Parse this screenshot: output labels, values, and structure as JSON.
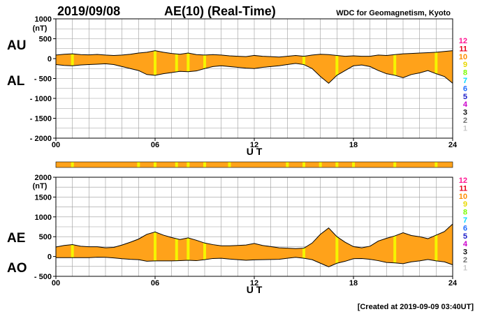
{
  "header": {
    "date": "2019/09/08",
    "title": "AE(10) (Real-Time)",
    "source": "WDC for Geomagnetism, Kyoto"
  },
  "footer": {
    "created": "[Created at 2019-09-09 03:40UT]"
  },
  "colors": {
    "fill": "#ffa21a",
    "highlight": "#f5f500",
    "grid": "#9a9a9a",
    "outline": "#000000"
  },
  "legend": {
    "levels": [
      {
        "label": "12",
        "color": "#ff1493"
      },
      {
        "label": "11",
        "color": "#e8001c"
      },
      {
        "label": "10",
        "color": "#ff8c00"
      },
      {
        "label": "9",
        "color": "#e8d800"
      },
      {
        "label": "8",
        "color": "#7cfc00"
      },
      {
        "label": "7",
        "color": "#00d8ff"
      },
      {
        "label": "6",
        "color": "#1e6cff"
      },
      {
        "label": "5",
        "color": "#1c1cc8"
      },
      {
        "label": "4",
        "color": "#cc00cc"
      },
      {
        "label": "3",
        "color": "#101010"
      },
      {
        "label": "2",
        "color": "#707070"
      },
      {
        "label": "1",
        "color": "#c8c8c8"
      }
    ]
  },
  "station_bar": {
    "highlight_hours": [
      1.0,
      5.0,
      6.0,
      7.3,
      8.0,
      9.0,
      10.5,
      14.0,
      15.0,
      16.0,
      17.0,
      18.0,
      20.5,
      23.0
    ]
  },
  "chart_data": [
    {
      "type": "area",
      "title": "AU / AL",
      "labels": {
        "upper": "AU",
        "lower": "AL"
      },
      "unit": "(nT)",
      "xlabel": "U T",
      "xlim": [
        0,
        24
      ],
      "ylim": [
        -2000,
        1000
      ],
      "yticks": [
        1000,
        500,
        0,
        -500,
        -1000,
        -1500,
        -2000
      ],
      "ytick_labels": [
        "1000",
        "500",
        "0",
        "- 500",
        "- 1000",
        "- 1500",
        "- 2000"
      ],
      "xticks": [
        0,
        6,
        12,
        18,
        24
      ],
      "xtick_labels": [
        "00",
        "06",
        "12",
        "18",
        "24"
      ],
      "highlight_hours": [
        1.0,
        6.0,
        7.3,
        8.0,
        9.0,
        15.0,
        17.0,
        20.5,
        23.0
      ],
      "series": [
        {
          "name": "AU",
          "x": [
            0,
            0.5,
            1,
            1.5,
            2,
            2.5,
            3,
            3.5,
            4,
            4.5,
            5,
            5.5,
            6,
            6.5,
            7,
            7.5,
            8,
            8.5,
            9,
            9.5,
            10,
            10.5,
            11,
            11.5,
            12,
            12.5,
            13,
            13.5,
            14,
            14.5,
            15,
            15.5,
            16,
            16.5,
            17,
            17.5,
            18,
            18.5,
            19,
            19.5,
            20,
            20.5,
            21,
            21.5,
            22,
            22.5,
            23,
            23.5,
            24
          ],
          "values": [
            90,
            110,
            120,
            100,
            95,
            105,
            90,
            80,
            90,
            110,
            140,
            160,
            200,
            160,
            130,
            110,
            140,
            100,
            90,
            100,
            90,
            70,
            60,
            50,
            80,
            60,
            50,
            40,
            60,
            80,
            60,
            90,
            110,
            100,
            80,
            60,
            70,
            60,
            60,
            90,
            80,
            100,
            120,
            130,
            140,
            150,
            160,
            180,
            200
          ]
        },
        {
          "name": "AL",
          "x": [
            0,
            0.5,
            1,
            1.5,
            2,
            2.5,
            3,
            3.5,
            4,
            4.5,
            5,
            5.5,
            6,
            6.5,
            7,
            7.5,
            8,
            8.5,
            9,
            9.5,
            10,
            10.5,
            11,
            11.5,
            12,
            12.5,
            13,
            13.5,
            14,
            14.5,
            15,
            15.5,
            16,
            16.5,
            17,
            17.5,
            18,
            18.5,
            19,
            19.5,
            20,
            20.5,
            21,
            21.5,
            22,
            22.5,
            23,
            23.5,
            24
          ],
          "values": [
            -150,
            -170,
            -180,
            -160,
            -150,
            -140,
            -130,
            -150,
            -200,
            -250,
            -300,
            -400,
            -420,
            -380,
            -350,
            -320,
            -330,
            -310,
            -250,
            -200,
            -180,
            -200,
            -220,
            -240,
            -250,
            -220,
            -200,
            -180,
            -150,
            -120,
            -150,
            -250,
            -450,
            -620,
            -420,
            -300,
            -180,
            -160,
            -200,
            -300,
            -380,
            -420,
            -480,
            -400,
            -360,
            -300,
            -380,
            -450,
            -620
          ]
        }
      ]
    },
    {
      "type": "area",
      "title": "AE / AO",
      "labels": {
        "upper": "AE",
        "lower": "AO"
      },
      "unit": "(nT)",
      "xlabel": "U T",
      "xlim": [
        0,
        24
      ],
      "ylim": [
        -500,
        2000
      ],
      "yticks": [
        2000,
        1500,
        1000,
        500,
        0,
        -500
      ],
      "ytick_labels": [
        "2000",
        "1500",
        "1000",
        "500",
        "0",
        "- 500"
      ],
      "xticks": [
        0,
        6,
        12,
        18,
        24
      ],
      "xtick_labels": [
        "00",
        "06",
        "12",
        "18",
        "24"
      ],
      "highlight_hours": [
        1.0,
        6.0,
        7.3,
        8.0,
        9.0,
        15.0,
        17.0,
        20.5,
        23.0
      ],
      "series": [
        {
          "name": "AE",
          "x": [
            0,
            0.5,
            1,
            1.5,
            2,
            2.5,
            3,
            3.5,
            4,
            4.5,
            5,
            5.5,
            6,
            6.5,
            7,
            7.5,
            8,
            8.5,
            9,
            9.5,
            10,
            10.5,
            11,
            11.5,
            12,
            12.5,
            13,
            13.5,
            14,
            14.5,
            15,
            15.5,
            16,
            16.5,
            17,
            17.5,
            18,
            18.5,
            19,
            19.5,
            20,
            20.5,
            21,
            21.5,
            22,
            22.5,
            23,
            23.5,
            24
          ],
          "values": [
            240,
            280,
            300,
            260,
            245,
            245,
            220,
            230,
            290,
            360,
            440,
            560,
            620,
            540,
            480,
            430,
            470,
            410,
            340,
            300,
            270,
            270,
            280,
            290,
            330,
            280,
            250,
            220,
            210,
            200,
            210,
            340,
            560,
            720,
            500,
            360,
            250,
            220,
            260,
            390,
            460,
            520,
            600,
            530,
            500,
            450,
            540,
            630,
            820
          ]
        },
        {
          "name": "AO",
          "x": [
            0,
            0.5,
            1,
            1.5,
            2,
            2.5,
            3,
            3.5,
            4,
            4.5,
            5,
            5.5,
            6,
            6.5,
            7,
            7.5,
            8,
            8.5,
            9,
            9.5,
            10,
            10.5,
            11,
            11.5,
            12,
            12.5,
            13,
            13.5,
            14,
            14.5,
            15,
            15.5,
            16,
            16.5,
            17,
            17.5,
            18,
            18.5,
            19,
            19.5,
            20,
            20.5,
            21,
            21.5,
            22,
            22.5,
            23,
            23.5,
            24
          ],
          "values": [
            -30,
            -30,
            -30,
            -30,
            -28,
            -18,
            -20,
            -35,
            -55,
            -70,
            -80,
            -120,
            -110,
            -110,
            -110,
            -105,
            -95,
            -105,
            -80,
            -50,
            -45,
            -65,
            -80,
            -95,
            -85,
            -80,
            -75,
            -70,
            -45,
            -20,
            -45,
            -80,
            -170,
            -260,
            -170,
            -120,
            -55,
            -50,
            -70,
            -105,
            -150,
            -160,
            -180,
            -135,
            -110,
            -75,
            -110,
            -135,
            -210
          ]
        }
      ]
    }
  ]
}
